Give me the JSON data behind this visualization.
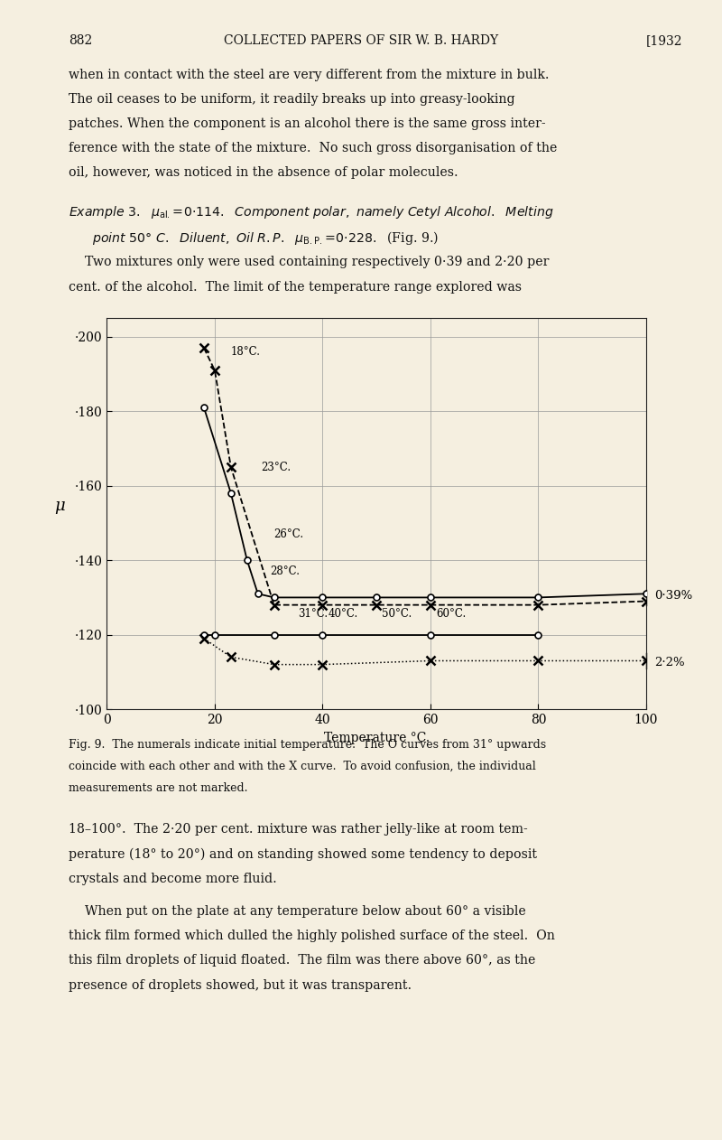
{
  "page_number": "882",
  "header_title": "COLLECTED PAPERS OF SIR W. B. HARDY",
  "header_year": "[1932",
  "bg_color": "#f5efe0",
  "text_color": "#111111",
  "ylabel": "μ",
  "xlabel": "Temperature °C.",
  "ylim": [
    0.1,
    0.205
  ],
  "xlim": [
    0,
    100
  ],
  "yticks": [
    0.1,
    0.12,
    0.14,
    0.16,
    0.18,
    0.2
  ],
  "ytick_labels": [
    "·100",
    "·120",
    "·140",
    "·160",
    "·180",
    "·200"
  ],
  "xticks": [
    0,
    20,
    40,
    60,
    80,
    100
  ],
  "curve_039_O_x": [
    18,
    23,
    26,
    28,
    31,
    40,
    50,
    60,
    80,
    100
  ],
  "curve_039_O_y": [
    0.181,
    0.158,
    0.14,
    0.131,
    0.13,
    0.13,
    0.13,
    0.13,
    0.13,
    0.131
  ],
  "curve_039_X_x": [
    18,
    20,
    23,
    31,
    40,
    50,
    60,
    80,
    100
  ],
  "curve_039_X_y": [
    0.197,
    0.191,
    0.165,
    0.128,
    0.128,
    0.128,
    0.128,
    0.128,
    0.129
  ],
  "curve_22_O_x": [
    18,
    20,
    31,
    40,
    60,
    80
  ],
  "curve_22_O_y": [
    0.12,
    0.12,
    0.12,
    0.12,
    0.12,
    0.12
  ],
  "curve_22_X_x": [
    18,
    23,
    31,
    40,
    60,
    80,
    100
  ],
  "curve_22_X_y": [
    0.119,
    0.114,
    0.112,
    0.112,
    0.113,
    0.113,
    0.113
  ],
  "temp_annotations": [
    [
      23,
      0.196,
      "18°C."
    ],
    [
      28.5,
      0.165,
      "23°C."
    ],
    [
      31,
      0.147,
      "26°C."
    ],
    [
      30.2,
      0.137,
      "28°C."
    ],
    [
      35.5,
      0.1255,
      "31°C."
    ],
    [
      41,
      0.1255,
      "40°C."
    ],
    [
      51,
      0.1255,
      "50°C."
    ],
    [
      61,
      0.1255,
      "60°C."
    ]
  ],
  "label_039": "0·39%",
  "label_22": "2·2%",
  "para1_lines": [
    "when in contact with the steel are very different from the mixture in bulk.",
    "The oil ceases to be uniform, it readily breaks up into greasy-looking",
    "patches. When the component is an alcohol there is the same gross inter-",
    "ference with the state of the mixture.  No such gross disorganisation of the",
    "oil, however, was noticed in the absence of polar molecules."
  ],
  "para2_lines": [
    "    Two mixtures only were used containing respectively 0·39 and 2·20 per",
    "cent. of the alcohol.  The limit of the temperature range explored was"
  ],
  "caption_lines": [
    "Fig. 9.  The numerals indicate initial temperature.  The O curves from 31° upwards",
    "coincide with each other and with the X curve.  To avoid confusion, the individual",
    "measurements are not marked."
  ],
  "para3_lines": [
    "18–100°.  The 2·20 per cent. mixture was rather jelly-like at room tem-",
    "perature (18° to 20°) and on standing showed some tendency to deposit",
    "crystals and become more fluid."
  ],
  "para4_lines": [
    "    When put on the plate at any temperature below about 60° a visible",
    "thick film formed which dulled the highly polished surface of the steel.  On",
    "this film droplets of liquid floated.  The film was there above 60°, as the",
    "presence of droplets showed, but it was transparent."
  ]
}
